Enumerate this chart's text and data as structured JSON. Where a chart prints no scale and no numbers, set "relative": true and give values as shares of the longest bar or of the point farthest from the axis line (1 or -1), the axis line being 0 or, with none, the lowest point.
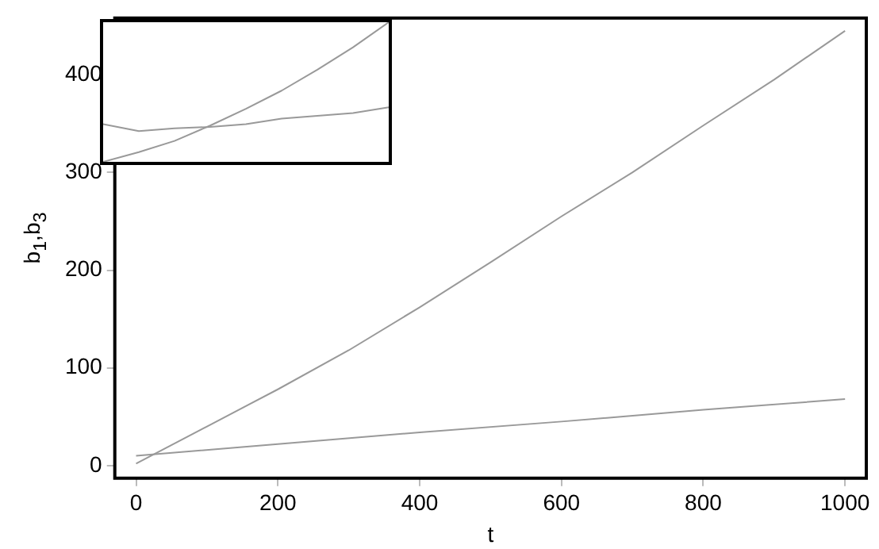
{
  "chart_data": [
    {
      "type": "line",
      "xlabel": "t",
      "ylabel": "b$_{1}$,b$_{3}$",
      "xlim": [
        -30,
        1030
      ],
      "ylim": [
        -13,
        458
      ],
      "xticks": [
        0,
        200,
        400,
        600,
        800,
        1000
      ],
      "yticks": [
        0,
        100,
        200,
        300,
        400
      ],
      "series": [
        {
          "color": "#999999",
          "x": [
            0,
            100,
            200,
            300,
            400,
            500,
            600,
            700,
            800,
            900,
            1000
          ],
          "values": [
            2,
            40,
            78,
            118,
            162,
            208,
            255,
            300,
            348,
            395,
            445
          ]
        },
        {
          "color": "#999999",
          "x": [
            0,
            200,
            400,
            600,
            800,
            1000
          ],
          "values": [
            10,
            22,
            34,
            45,
            57,
            68
          ]
        }
      ]
    },
    {
      "type": "line",
      "relative": true,
      "categories": [
        null,
        null,
        null,
        null,
        null,
        null,
        null,
        null,
        null
      ],
      "series": [
        {
          "color": "#999999",
          "values": [
            0,
            0.07,
            0.15,
            0.26,
            0.38,
            0.51,
            0.66,
            0.82,
            1
          ]
        },
        {
          "color": "#999999",
          "values": [
            0.27,
            0.22,
            0.24,
            0.25,
            0.27,
            0.31,
            0.33,
            0.35,
            0.39
          ]
        }
      ]
    }
  ]
}
